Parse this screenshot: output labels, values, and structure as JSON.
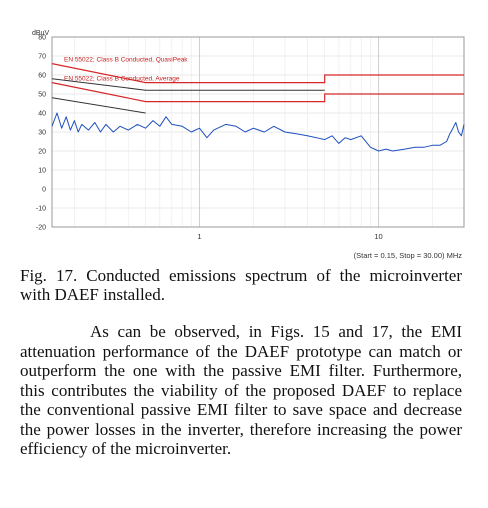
{
  "chart_data": {
    "type": "line",
    "y_unit_label": "dBuV",
    "x_scale": "log",
    "xlim": [
      0.15,
      30
    ],
    "ylim": [
      -20,
      80
    ],
    "y_ticks": [
      80,
      70,
      60,
      50,
      40,
      30,
      20,
      10,
      0,
      -10,
      -20
    ],
    "x_ticks": [
      {
        "value": 1,
        "label": "1"
      },
      {
        "value": 10,
        "label": "10"
      }
    ],
    "x_range_label": "(Start = 0.15, Stop = 30.00) MHz",
    "grid": true,
    "limit_lines": [
      {
        "name": "EN 55022; Class B Conducted, QuasiPeak",
        "color": "#d62728",
        "x": [
          0.15,
          0.5,
          0.5,
          5,
          5,
          30
        ],
        "y": [
          66,
          56,
          56,
          56,
          60,
          60
        ]
      },
      {
        "name": "EN 55022; Class B Conducted, Average",
        "color": "#d62728",
        "x": [
          0.15,
          0.5,
          0.5,
          5,
          5,
          30
        ],
        "y": [
          56,
          46,
          46,
          46,
          50,
          50
        ]
      }
    ],
    "reference_lines": [
      {
        "color": "#333333",
        "x": [
          0.15,
          0.5,
          0.5,
          5
        ],
        "y": [
          58,
          52,
          52,
          52
        ]
      },
      {
        "color": "#333333",
        "x": [
          0.15,
          0.5
        ],
        "y": [
          48,
          40
        ]
      }
    ],
    "series": [
      {
        "color": "#1f4fbf",
        "x": [
          0.15,
          0.16,
          0.17,
          0.18,
          0.19,
          0.2,
          0.21,
          0.22,
          0.24,
          0.26,
          0.28,
          0.3,
          0.33,
          0.36,
          0.4,
          0.45,
          0.5,
          0.55,
          0.6,
          0.65,
          0.7,
          0.8,
          0.9,
          1.0,
          1.1,
          1.2,
          1.4,
          1.6,
          1.8,
          2.0,
          2.3,
          2.6,
          3.0,
          3.5,
          4.0,
          4.5,
          5.0,
          5.5,
          6.0,
          6.5,
          7.0,
          8.0,
          9.0,
          10.0,
          11.0,
          12.0,
          14.0,
          16.0,
          18.0,
          20.0,
          22.0,
          24.0,
          25.0,
          26.0,
          27.0,
          28.0,
          29.0,
          30.0
        ],
        "y": [
          33,
          40,
          32,
          38,
          31,
          36,
          30,
          34,
          31,
          35,
          30,
          34,
          30,
          33,
          31,
          34,
          32,
          36,
          33,
          38,
          34,
          33,
          30,
          32,
          27,
          31,
          34,
          33,
          30,
          32,
          30,
          33,
          30,
          29,
          28,
          27,
          26,
          28,
          24,
          27,
          26,
          28,
          22,
          20,
          21,
          20,
          21,
          22,
          22,
          23,
          23,
          25,
          29,
          32,
          35,
          30,
          28,
          34
        ]
      }
    ]
  },
  "caption": "Fig.  17.  Conducted  emissions  spectrum  of  the microinverter with DAEF installed.",
  "paragraph": "As can be observed, in Figs. 15 and 17, the EMI attenuation performance of the DAEF prototype can match or outperform the one with the passive EMI filter. Furthermore, this contributes the viability of the proposed DAEF to replace the conventional passive EMI filter to save space and decrease the power losses in the inverter, therefore increasing the power efficiency of the microinverter."
}
